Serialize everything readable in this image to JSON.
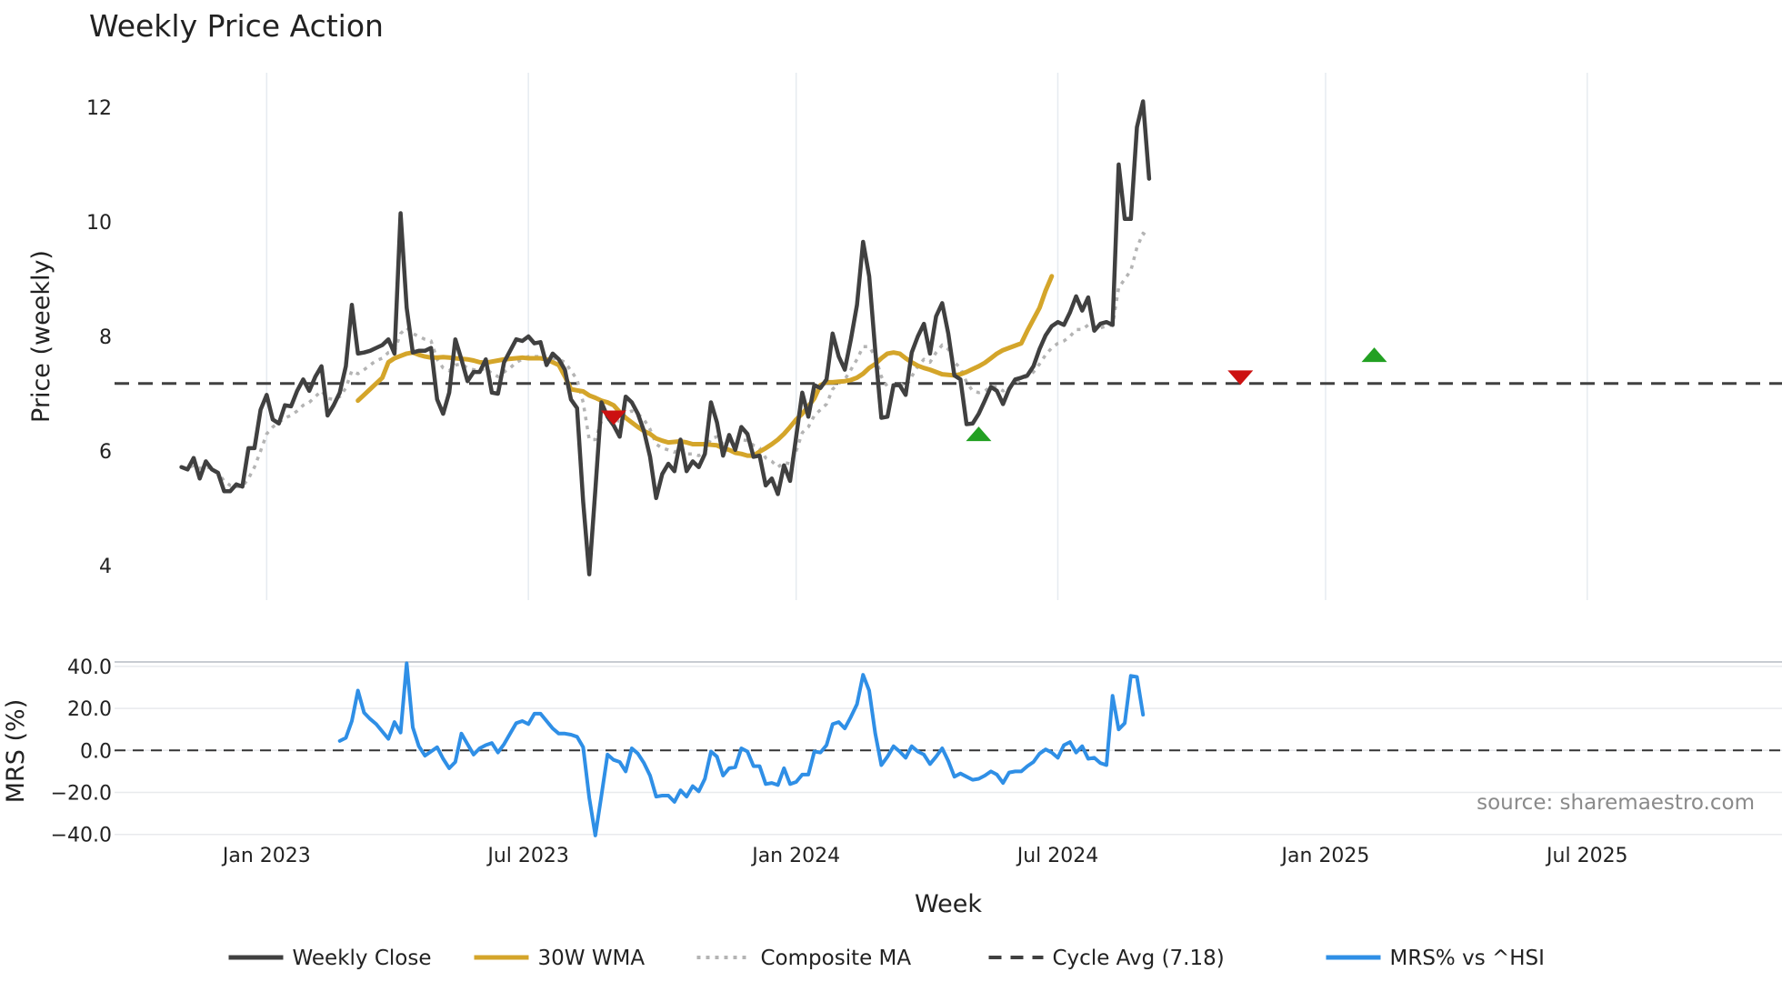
{
  "chart_data": [
    {
      "type": "line",
      "title": "Weekly Price Action",
      "xlabel": "",
      "ylabel": "Price (weekly)",
      "ylim": [
        3.4,
        12.6
      ],
      "yticks": [
        4,
        6,
        8,
        10,
        12
      ],
      "xlim": [
        -11,
        263
      ],
      "xticks": [
        {
          "x": 14,
          "label": "Jan 2023"
        },
        {
          "x": 57,
          "label": "Jul 2023"
        },
        {
          "x": 101,
          "label": "Jan 2024"
        },
        {
          "x": 144,
          "label": "Jul 2024"
        },
        {
          "x": 188,
          "label": "Jan 2025"
        },
        {
          "x": 231,
          "label": "Jul 2025"
        }
      ],
      "grid": "vertical",
      "cycle_avg": 7.18,
      "series": [
        {
          "name": "Weekly Close",
          "color": "#404040",
          "style": "solid",
          "start": 0,
          "values": [
            5.72,
            5.68,
            5.88,
            5.52,
            5.82,
            5.68,
            5.62,
            5.3,
            5.3,
            5.42,
            5.38,
            6.05,
            6.05,
            6.72,
            6.98,
            6.55,
            6.48,
            6.8,
            6.78,
            7.05,
            7.25,
            7.05,
            7.3,
            7.48,
            6.62,
            6.8,
            7.02,
            7.48,
            8.55,
            7.7,
            7.72,
            7.75,
            7.8,
            7.85,
            7.95,
            7.7,
            10.15,
            8.5,
            7.72,
            7.75,
            7.75,
            7.8,
            6.9,
            6.65,
            7.02,
            7.95,
            7.6,
            7.22,
            7.38,
            7.38,
            7.6,
            7.02,
            7.0,
            7.55,
            7.75,
            7.95,
            7.92,
            8.0,
            7.88,
            7.9,
            7.5,
            7.7,
            7.6,
            7.42,
            6.9,
            6.75,
            5.12,
            3.85,
            5.32,
            6.85,
            6.6,
            6.45,
            6.25,
            6.95,
            6.85,
            6.65,
            6.35,
            5.9,
            5.18,
            5.6,
            5.78,
            5.65,
            6.2,
            5.65,
            5.82,
            5.72,
            5.95,
            6.85,
            6.5,
            5.92,
            6.28,
            6.02,
            6.42,
            6.3,
            5.9,
            5.92,
            5.4,
            5.52,
            5.25,
            5.75,
            5.48,
            6.25,
            7.02,
            6.6,
            7.15,
            7.1,
            7.25,
            8.05,
            7.65,
            7.42,
            7.95,
            8.55,
            9.65,
            9.05,
            7.75,
            6.58,
            6.6,
            7.15,
            7.15,
            6.98,
            7.72,
            8.0,
            8.22,
            7.7,
            8.35,
            8.58,
            8.05,
            7.32,
            7.25,
            6.47,
            6.48,
            6.65,
            6.88,
            7.12,
            7.05,
            6.82,
            7.08,
            7.25,
            7.28,
            7.32,
            7.48,
            7.78,
            8.02,
            8.18,
            8.25,
            8.2,
            8.42,
            8.7,
            8.45,
            8.68,
            8.1,
            8.22,
            8.25,
            8.2,
            11.0,
            10.05,
            10.05,
            11.65,
            12.1,
            10.75
          ]
        },
        {
          "name": "30W WMA",
          "color": "#d4a52a",
          "style": "solid",
          "start": 29,
          "values": [
            6.88,
            6.98,
            7.08,
            7.18,
            7.28,
            7.55,
            7.62,
            7.66,
            7.7,
            7.72,
            7.68,
            7.65,
            7.63,
            7.63,
            7.64,
            7.63,
            7.62,
            7.61,
            7.6,
            7.58,
            7.55,
            7.54,
            7.56,
            7.58,
            7.6,
            7.61,
            7.62,
            7.63,
            7.62,
            7.62,
            7.62,
            7.6,
            7.55,
            7.5,
            7.3,
            7.08,
            7.06,
            7.04,
            6.97,
            6.93,
            6.88,
            6.85,
            6.8,
            6.68,
            6.58,
            6.5,
            6.42,
            6.35,
            6.3,
            6.22,
            6.18,
            6.15,
            6.16,
            6.17,
            6.15,
            6.12,
            6.12,
            6.12,
            6.11,
            6.1,
            6.05,
            6.02,
            5.97,
            5.95,
            5.92,
            5.92,
            5.99,
            6.05,
            6.12,
            6.2,
            6.3,
            6.42,
            6.55,
            6.65,
            6.78,
            6.92,
            7.15,
            7.2,
            7.2,
            7.21,
            7.22,
            7.24,
            7.28,
            7.35,
            7.45,
            7.52,
            7.62,
            7.7,
            7.72,
            7.7,
            7.62,
            7.55,
            7.49,
            7.45,
            7.42,
            7.38,
            7.34,
            7.33,
            7.32,
            7.34,
            7.38,
            7.43,
            7.48,
            7.54,
            7.62,
            7.7,
            7.76,
            7.8,
            7.84,
            7.88,
            8.1,
            8.3,
            8.5,
            8.8,
            9.05
          ]
        },
        {
          "name": "Composite MA",
          "color": "#b4b4b4",
          "style": "dotted",
          "start": 0,
          "values": [
            5.72,
            5.7,
            5.75,
            5.7,
            5.72,
            5.7,
            5.62,
            5.48,
            5.4,
            5.38,
            5.38,
            5.52,
            5.72,
            6.0,
            6.3,
            6.42,
            6.5,
            6.58,
            6.62,
            6.7,
            6.8,
            6.85,
            6.95,
            7.05,
            6.92,
            6.9,
            6.95,
            7.1,
            7.4,
            7.35,
            7.42,
            7.5,
            7.58,
            7.62,
            7.72,
            7.75,
            8.05,
            8.15,
            8.05,
            8.0,
            7.95,
            7.92,
            7.6,
            7.45,
            7.4,
            7.5,
            7.52,
            7.45,
            7.42,
            7.4,
            7.45,
            7.35,
            7.3,
            7.38,
            7.45,
            7.55,
            7.6,
            7.65,
            7.65,
            7.65,
            7.6,
            7.62,
            7.6,
            7.55,
            7.4,
            7.25,
            6.85,
            6.2,
            6.2,
            6.52,
            6.55,
            6.55,
            6.52,
            6.65,
            6.7,
            6.65,
            6.55,
            6.38,
            6.12,
            6.05,
            6.02,
            5.98,
            6.05,
            5.95,
            5.95,
            5.92,
            5.98,
            6.22,
            6.25,
            6.12,
            6.18,
            6.12,
            6.2,
            6.18,
            6.1,
            6.05,
            5.88,
            5.82,
            5.72,
            5.8,
            5.78,
            6.0,
            6.32,
            6.42,
            6.62,
            6.72,
            6.82,
            7.08,
            7.18,
            7.25,
            7.42,
            7.6,
            7.82,
            7.82,
            7.65,
            7.3,
            7.12,
            7.15,
            7.18,
            7.12,
            7.3,
            7.48,
            7.6,
            7.55,
            7.72,
            7.85,
            7.78,
            7.55,
            7.45,
            7.2,
            7.05,
            7.02,
            7.05,
            7.12,
            7.12,
            7.05,
            7.1,
            7.18,
            7.25,
            7.3,
            7.38,
            7.52,
            7.68,
            7.8,
            7.88,
            7.92,
            8.0,
            8.12,
            8.12,
            8.2,
            8.12,
            8.15,
            8.18,
            8.2,
            8.85,
            9.0,
            9.15,
            9.55,
            9.8,
            9.72
          ]
        }
      ],
      "markers": [
        {
          "type": "down",
          "x": 71,
          "y": 6.58,
          "color": "#cc1111"
        },
        {
          "type": "up",
          "x": 131,
          "y": 6.3,
          "color": "#22a022"
        },
        {
          "type": "down",
          "x": 174,
          "y": 7.28,
          "color": "#cc1111"
        },
        {
          "type": "up",
          "x": 196,
          "y": 7.68,
          "color": "#22a022"
        }
      ]
    },
    {
      "type": "line",
      "xlabel": "Week",
      "ylabel": "MRS (%)",
      "ylim": [
        -41,
        43
      ],
      "yticks": [
        40,
        20,
        0,
        -20,
        -40
      ],
      "ytick_labels": [
        "40.0",
        "20.0",
        "0.0",
        "−20.0",
        "−40.0"
      ],
      "zero_line": 0,
      "series": [
        {
          "name": "MRS% vs ^HSI",
          "color": "#2f8fe6",
          "style": "solid",
          "start": 26,
          "values": [
            4.5,
            6,
            14,
            28.5,
            18,
            15,
            12.5,
            9,
            5.5,
            13.5,
            8.5,
            41.5,
            11,
            2,
            -2.5,
            -0.5,
            1.5,
            -4,
            -8.5,
            -5.5,
            8,
            3,
            -2,
            1,
            2.5,
            3.5,
            -1,
            3,
            8,
            13,
            14,
            12.5,
            17.5,
            17.5,
            14,
            10.5,
            8,
            8,
            7.5,
            6.5,
            1.5,
            -22.5,
            -40.5,
            -21.5,
            -2,
            -4.5,
            -5.5,
            -10,
            1,
            -1.5,
            -6,
            -12,
            -22,
            -21.5,
            -21.5,
            -24.5,
            -19,
            -22,
            -17,
            -19.5,
            -13.5,
            -0.5,
            -3,
            -12,
            -8.5,
            -8,
            1,
            -0.5,
            -7.5,
            -7.5,
            -16,
            -15.5,
            -16.5,
            -8.5,
            -16,
            -15,
            -11.5,
            -11.5,
            -0.5,
            -1,
            2.5,
            12.5,
            13.5,
            10.5,
            16,
            22,
            36,
            28.5,
            8,
            -7,
            -3,
            2,
            -0.5,
            -3.5,
            2,
            -0.5,
            -2,
            -6.5,
            -3,
            1,
            -5,
            -12.5,
            -11,
            -12.5,
            -14,
            -13.5,
            -12,
            -10,
            -11.5,
            -15.5,
            -10.5,
            -10,
            -10,
            -7.5,
            -5.5,
            -1.5,
            0.5,
            -1,
            -3.5,
            2.5,
            4,
            -1,
            2,
            -4,
            -3.5,
            -6,
            -7,
            26,
            10,
            13,
            35.5,
            35,
            17
          ]
        }
      ]
    }
  ],
  "title": "Weekly Price Action",
  "source": "source: sharemaestro.com",
  "legend": [
    {
      "label": "Weekly Close",
      "color": "#404040",
      "style": "solid"
    },
    {
      "label": "30W WMA",
      "color": "#d4a52a",
      "style": "solid"
    },
    {
      "label": "Composite MA",
      "color": "#b4b4b4",
      "style": "dotted"
    },
    {
      "label": "Cycle Avg (7.18)",
      "color": "#404040",
      "style": "dashed"
    },
    {
      "label": "MRS% vs ^HSI",
      "color": "#2f8fe6",
      "style": "solid"
    }
  ]
}
